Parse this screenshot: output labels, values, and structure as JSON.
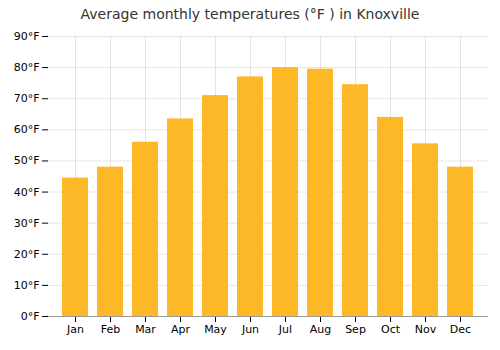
{
  "chart_data": {
    "type": "bar",
    "title": "Average monthly temperatures (°F ) in Knoxville",
    "categories": [
      "Jan",
      "Feb",
      "Mar",
      "Apr",
      "May",
      "Jun",
      "Jul",
      "Aug",
      "Sep",
      "Oct",
      "Nov",
      "Dec"
    ],
    "values": [
      44.5,
      48,
      56,
      63.5,
      71,
      77,
      80,
      79.5,
      74.5,
      64,
      55.5,
      48
    ],
    "color": "#FDB827",
    "ylim": [
      0,
      90
    ],
    "yticks": [
      {
        "value": 0,
        "label": "0°F"
      },
      {
        "value": 10,
        "label": "10°F"
      },
      {
        "value": 20,
        "label": "20°F"
      },
      {
        "value": 30,
        "label": "30°F"
      },
      {
        "value": 40,
        "label": "40°F"
      },
      {
        "value": 50,
        "label": "50°F"
      },
      {
        "value": 60,
        "label": "60°F"
      },
      {
        "value": 70,
        "label": "70°F"
      },
      {
        "value": 80,
        "label": "80°F"
      },
      {
        "value": 90,
        "label": "90°F"
      }
    ],
    "grid": true
  }
}
